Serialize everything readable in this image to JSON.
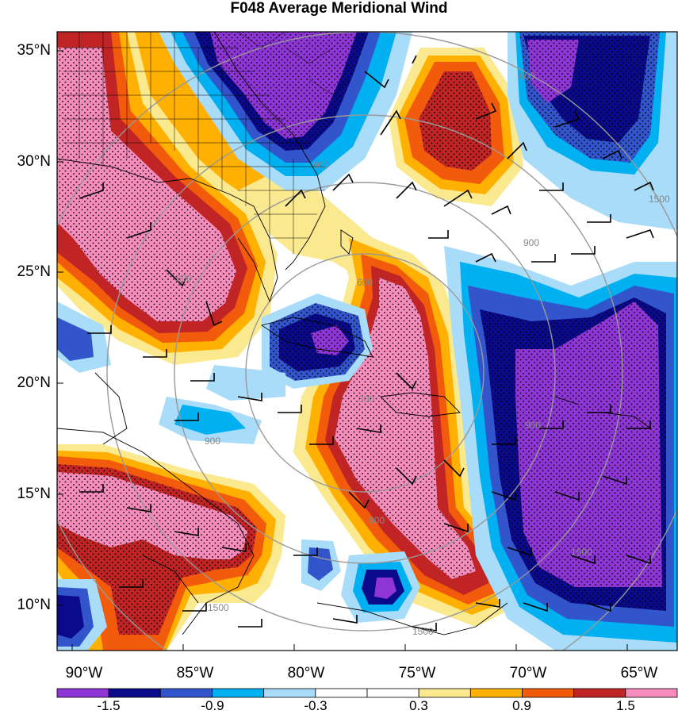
{
  "title": "F048 Average Meridional Wind",
  "lat_labels": [
    "35°N",
    "30°N",
    "25°N",
    "20°N",
    "15°N",
    "10°N"
  ],
  "lon_labels": [
    "90°W",
    "85°W",
    "80°W",
    "75°W",
    "70°W",
    "65°W"
  ],
  "colorbar": {
    "labels": [
      "-1.5",
      "-0.9",
      "-0.3",
      "0.3",
      "0.9",
      "1.5"
    ],
    "colors": [
      "#8e35d6",
      "#0a0a8a",
      "#3355cc",
      "#00b0f0",
      "#a8dcf8",
      "#ffffff",
      "#ffffff",
      "#fbe98f",
      "#ffb000",
      "#f25a0c",
      "#c02424",
      "#f58cbc"
    ]
  },
  "contour_labels": [
    "300",
    "600",
    "900",
    "1500",
    "900",
    "1500",
    "600",
    "900",
    "1500",
    "900",
    "600",
    "900",
    "1500"
  ],
  "colors": {
    "pink": "#f58cbc",
    "red": "#c02424",
    "orange": "#f25a0c",
    "amber": "#ffb000",
    "yellow": "#fbe98f",
    "light_blue": "#a8dcf8",
    "cyan": "#00b0f0",
    "blue": "#3355cc",
    "navy": "#0a0a8a",
    "purple": "#8e35d6"
  }
}
